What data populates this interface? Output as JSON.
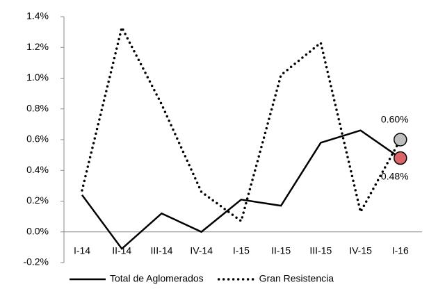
{
  "chart_data": {
    "type": "line",
    "categories": [
      "I-14",
      "II-14",
      "III-14",
      "IV-14",
      "I-15",
      "II-15",
      "III-15",
      "IV-15",
      "I-16"
    ],
    "series": [
      {
        "name": "Total de Aglomerados",
        "color": "#000000",
        "dash": "solid",
        "marker_color": "#d9666a",
        "values": [
          0.24,
          -0.11,
          0.12,
          0.0,
          0.21,
          0.17,
          0.58,
          0.66,
          0.48
        ],
        "value_labels": [
          null,
          null,
          null,
          null,
          null,
          null,
          null,
          null,
          "0.48%"
        ]
      },
      {
        "name": "Gran Resistencia",
        "color": "#000000",
        "dash": "dotted",
        "marker_color": "#bfbfbf",
        "values": [
          0.27,
          1.33,
          0.83,
          0.26,
          0.07,
          1.02,
          1.23,
          0.13,
          0.6
        ],
        "value_labels": [
          null,
          null,
          null,
          null,
          null,
          null,
          null,
          null,
          "0.60%"
        ]
      }
    ],
    "ylim": [
      -0.2,
      1.4
    ],
    "yticks": [
      {
        "value": -0.2,
        "label": "-0.2%"
      },
      {
        "value": 0,
        "label": "0.0%"
      },
      {
        "value": 0.2,
        "label": "0.2%"
      },
      {
        "value": 0.4,
        "label": "0.4%"
      },
      {
        "value": 0.6,
        "label": "0.6%"
      },
      {
        "value": 0.8,
        "label": "0.8%"
      },
      {
        "value": 1.0,
        "label": "1.0%"
      },
      {
        "value": 1.2,
        "label": "1.2%"
      },
      {
        "value": 1.4,
        "label": "1.4%"
      }
    ],
    "legend": "bottom"
  }
}
